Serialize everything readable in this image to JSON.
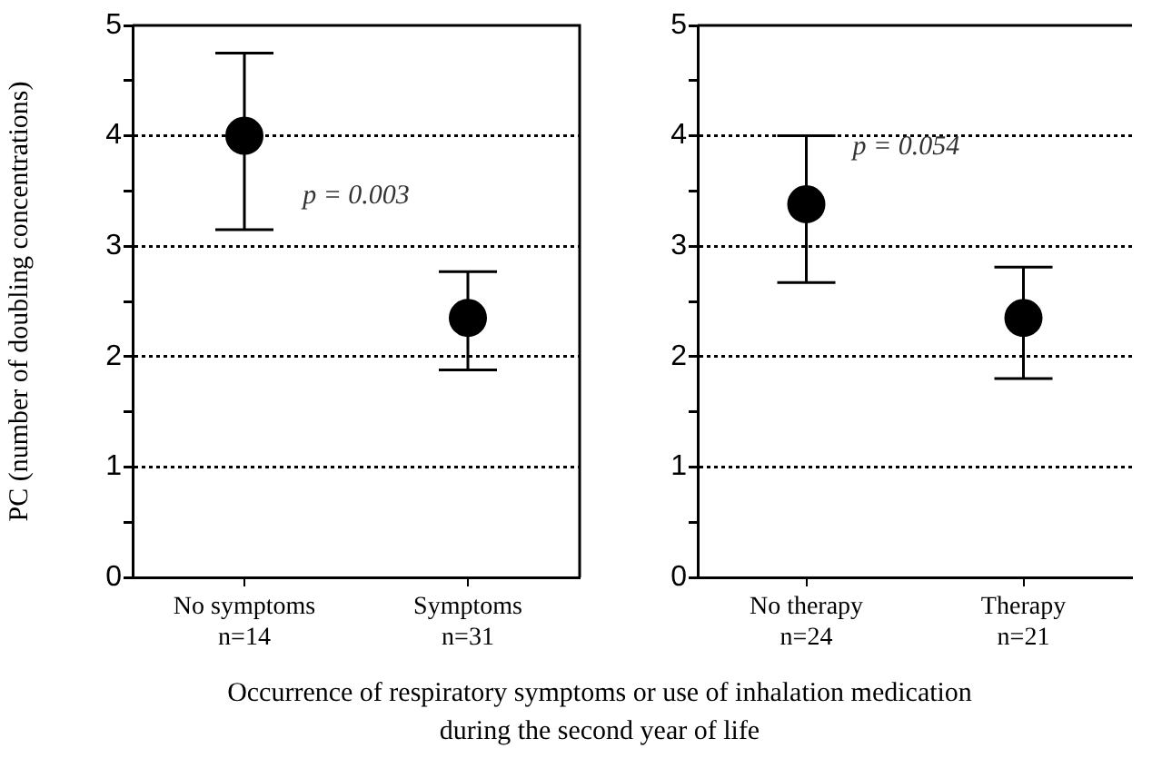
{
  "chart_data": [
    {
      "type": "scatter",
      "ylabel": "PC (number of doubling concentrations)",
      "xlabel": "Occurrence of respiratory symptoms or use of inhalation medication during the second year of life",
      "categories": [
        "No symptoms\nn=14",
        "Symptoms\nn=31"
      ],
      "values": [
        4.0,
        2.35
      ],
      "errors": [
        [
          3.15,
          4.75
        ],
        [
          1.88,
          2.77
        ]
      ],
      "color": "#000000",
      "marker": "circle",
      "ylim": [
        0,
        5
      ],
      "yticks": [
        0,
        {
          "value": 0.5,
          "label": null
        },
        1,
        {
          "value": 1.5,
          "label": null
        },
        2,
        {
          "value": 2.5,
          "label": null
        },
        3,
        {
          "value": 3.5,
          "label": null
        },
        4,
        {
          "value": 4.5,
          "label": null
        },
        5
      ],
      "grid": "y",
      "annotations": [
        "p = 0.003"
      ]
    },
    {
      "type": "scatter",
      "categories": [
        "No therapy\nn=24",
        "Therapy\nn=21"
      ],
      "values": [
        3.38,
        2.35
      ],
      "errors": [
        [
          2.67,
          4.0
        ],
        [
          1.8,
          2.81
        ]
      ],
      "color": "#000000",
      "marker": "circle",
      "ylim": [
        0,
        5
      ],
      "yticks": [
        0,
        {
          "value": 0.5,
          "label": null
        },
        1,
        {
          "value": 1.5,
          "label": null
        },
        2,
        {
          "value": 2.5,
          "label": null
        },
        3,
        {
          "value": 3.5,
          "label": null
        },
        4,
        {
          "value": 4.5,
          "label": null
        },
        5
      ],
      "grid": "y",
      "annotations": [
        "p = 0.054"
      ]
    }
  ]
}
